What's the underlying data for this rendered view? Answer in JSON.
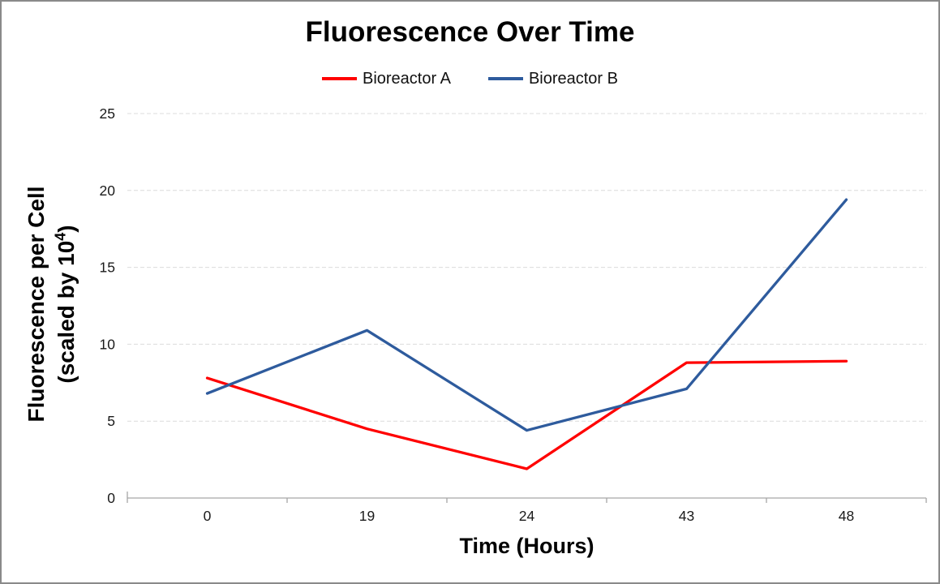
{
  "chart_data": {
    "type": "line",
    "title": "Fluorescence Over Time",
    "xlabel": "Time (Hours)",
    "ylabel_line1": "Fluorescence per Cell",
    "ylabel_line2_prefix": "(scaled by 10",
    "ylabel_line2_sup": "4",
    "ylabel_line2_suffix": ")",
    "categories": [
      "0",
      "19",
      "24",
      "43",
      "48"
    ],
    "series": [
      {
        "name": "Bioreactor A",
        "color": "#FF0000",
        "values": [
          7.8,
          4.5,
          1.9,
          8.8,
          8.9
        ]
      },
      {
        "name": "Bioreactor B",
        "color": "#2E5B9D",
        "values": [
          6.8,
          10.9,
          4.4,
          7.1,
          19.4
        ]
      }
    ],
    "y_ticks": [
      0,
      5,
      10,
      15,
      20,
      25
    ],
    "ylim": [
      0,
      25
    ],
    "x_axis_type": "categorical",
    "grid": "horizontal-dashed",
    "legend_position": "top",
    "colors": {
      "axis_line": "#A6A6A6",
      "gridline": "#DCDCDC",
      "tick_label": "#1A1A1A"
    }
  }
}
